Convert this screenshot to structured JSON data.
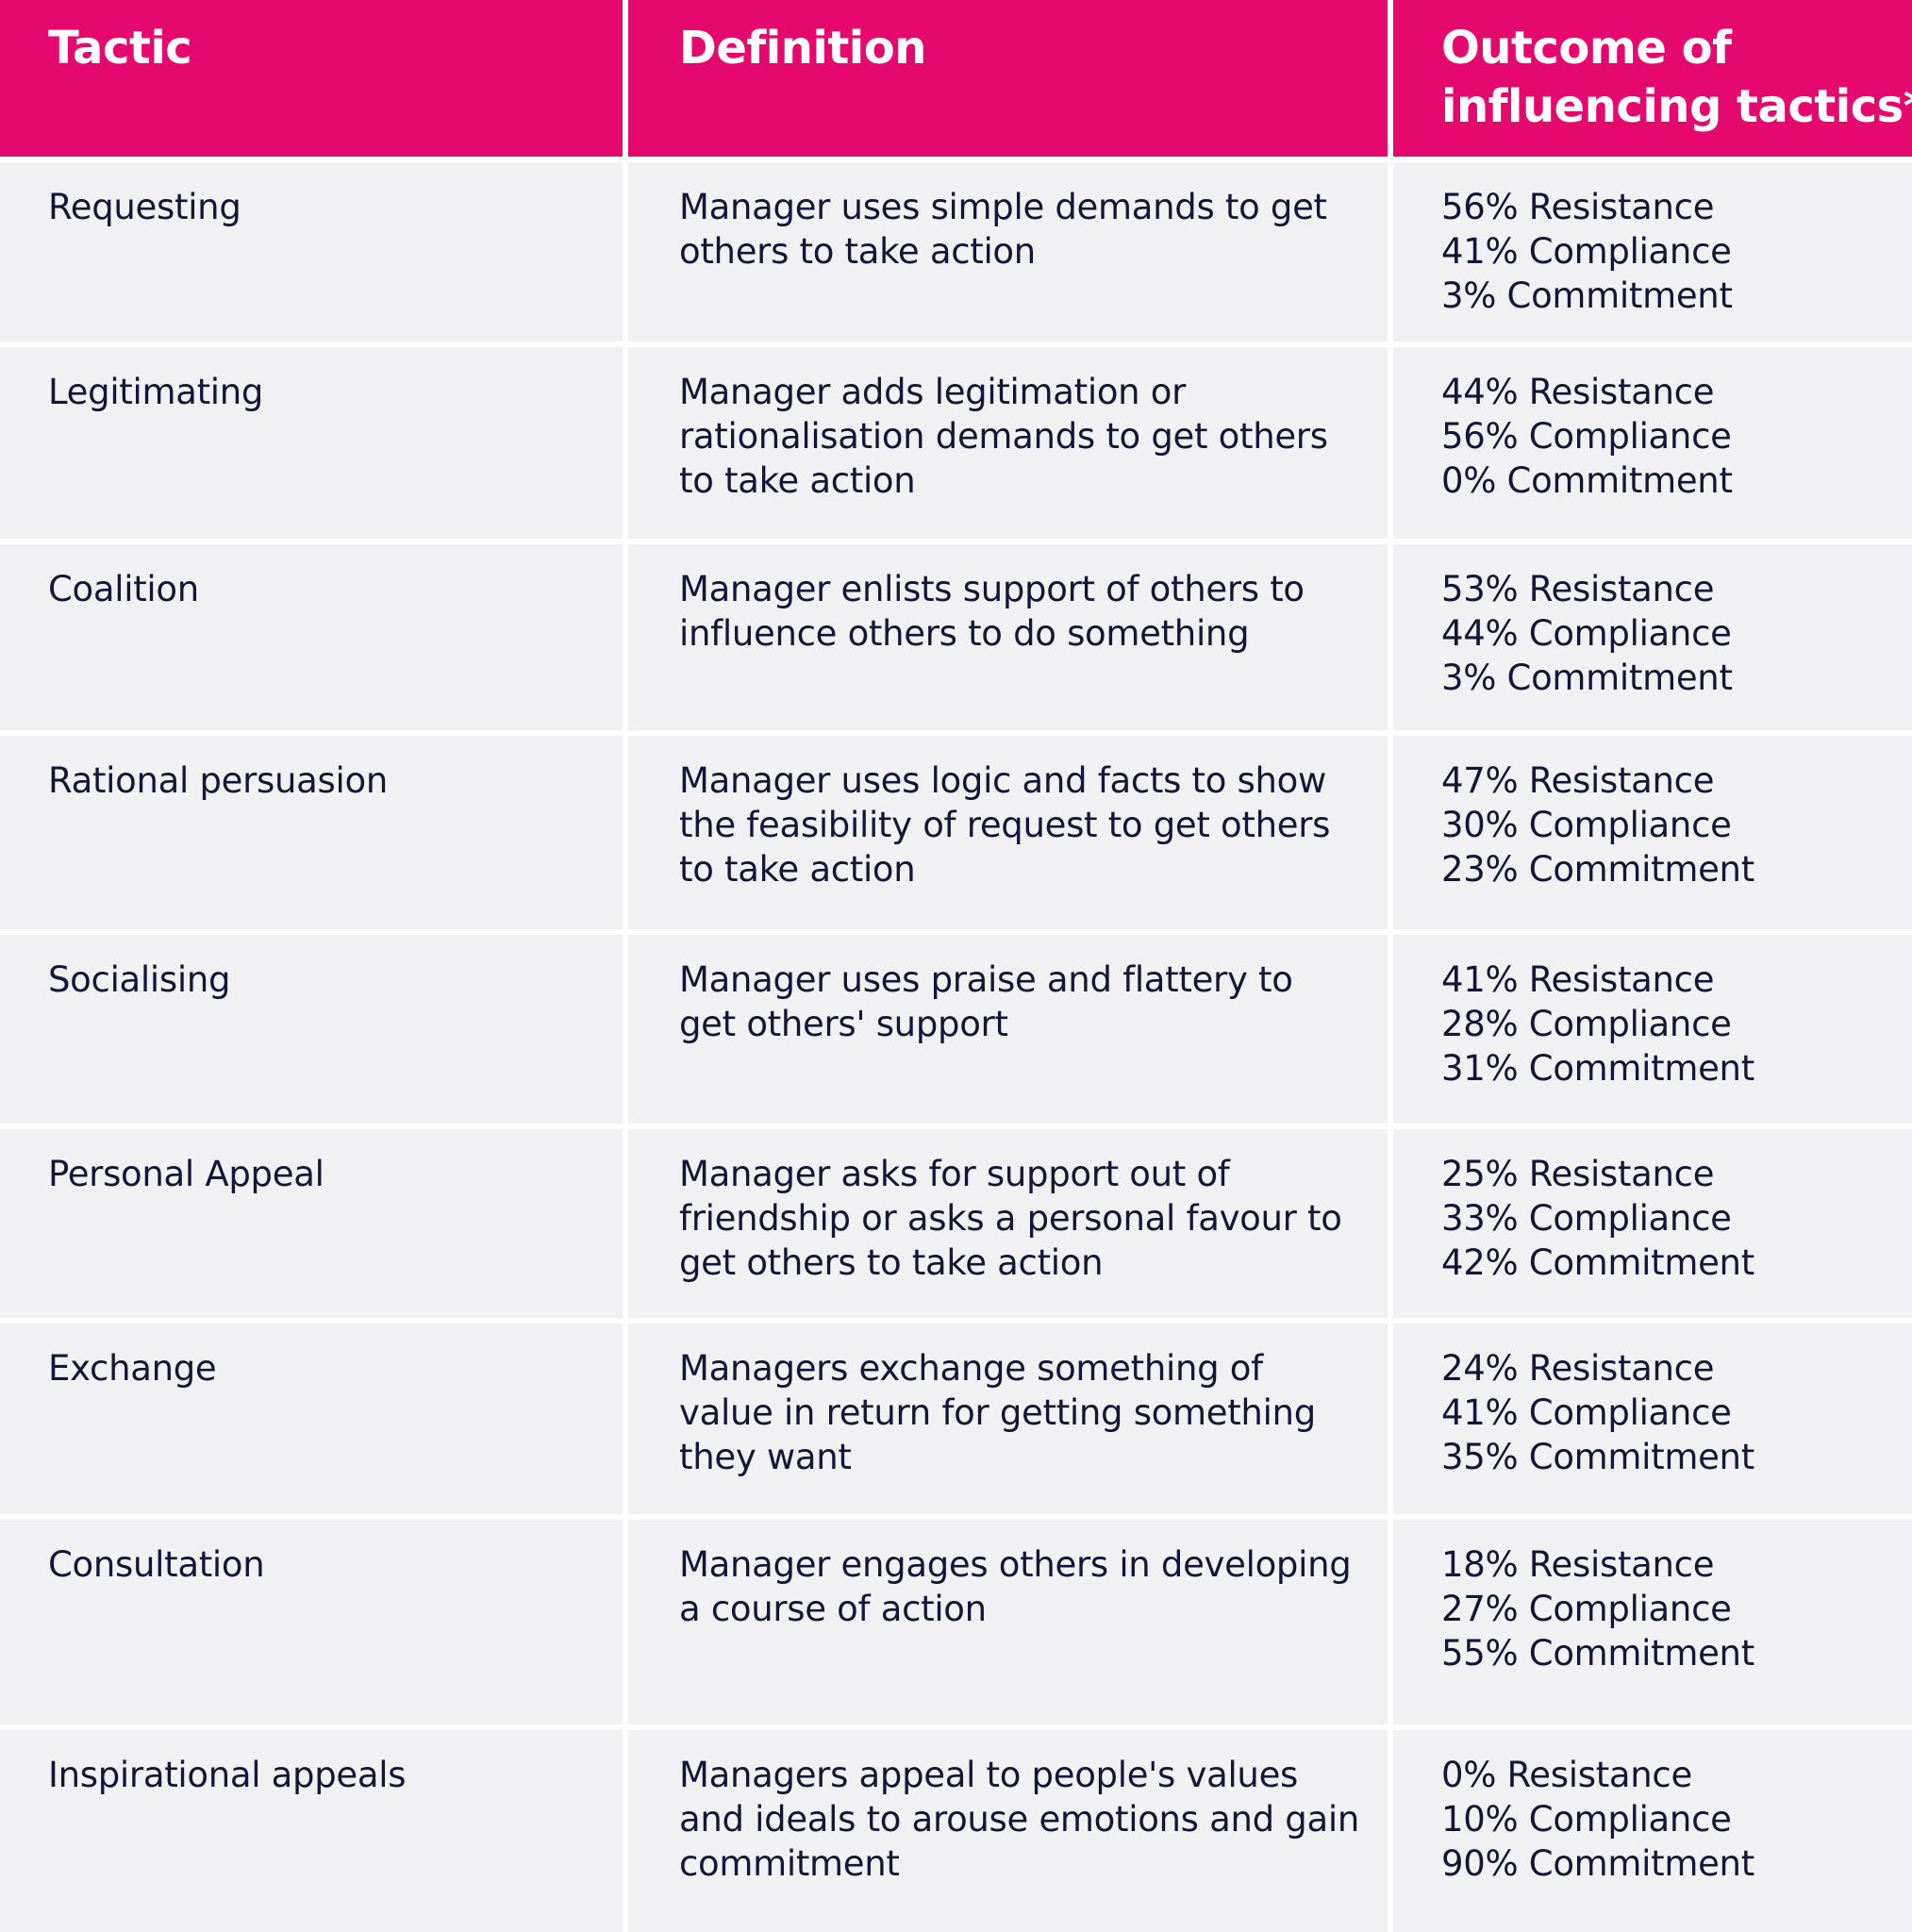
{
  "colors": {
    "header_bg": "#e5086f",
    "header_text": "#ffffff",
    "cell_bg": "#f1f1f3",
    "text": "#141638"
  },
  "headers": {
    "tactic": "Tactic",
    "definition": "Definition",
    "outcome_line1": "Outcome of",
    "outcome_line2": "influencing tactics*"
  },
  "rows": [
    {
      "tactic": "Requesting",
      "definition": "Manager uses simple demands to get others to take action",
      "resistance": "56% Resistance",
      "compliance": "41% Compliance",
      "commitment": "3% Commitment"
    },
    {
      "tactic": "Legitimating",
      "definition": "Manager adds legitimation or rationalisation demands to get others to take action",
      "resistance": "44% Resistance",
      "compliance": "56% Compliance",
      "commitment": "0% Commitment"
    },
    {
      "tactic": "Coalition",
      "definition": "Manager enlists support of others to influence others to do something",
      "resistance": "53% Resistance",
      "compliance": "44% Compliance",
      "commitment": "3% Commitment"
    },
    {
      "tactic": "Rational persuasion",
      "definition": "Manager uses logic and facts to show the feasibility of request to get others to take action",
      "resistance": "47% Resistance",
      "compliance": "30% Compliance",
      "commitment": "23% Commitment"
    },
    {
      "tactic": "Socialising",
      "definition": "Manager uses praise and flattery to get others' support",
      "resistance": "41% Resistance",
      "compliance": "28% Compliance",
      "commitment": "31% Commitment"
    },
    {
      "tactic": "Personal Appeal",
      "definition": "Manager asks for support out of friendship or asks a personal favour to get others to take action",
      "resistance": "25% Resistance",
      "compliance": "33% Compliance",
      "commitment": "42% Commitment"
    },
    {
      "tactic": "Exchange",
      "definition": "Managers exchange something of value in return for getting something they want",
      "resistance": "24% Resistance",
      "compliance": "41% Compliance",
      "commitment": "35% Commitment"
    },
    {
      "tactic": "Consultation",
      "definition": "Manager engages others in developing a course of action",
      "resistance": "18% Resistance",
      "compliance": "27% Compliance",
      "commitment": "55% Commitment"
    },
    {
      "tactic": "Inspirational appeals",
      "definition": "Managers appeal to people's values and ideals to arouse emotions and gain commitment",
      "resistance": "0% Resistance",
      "compliance": "10% Compliance",
      "commitment": "90% Commitment"
    }
  ]
}
